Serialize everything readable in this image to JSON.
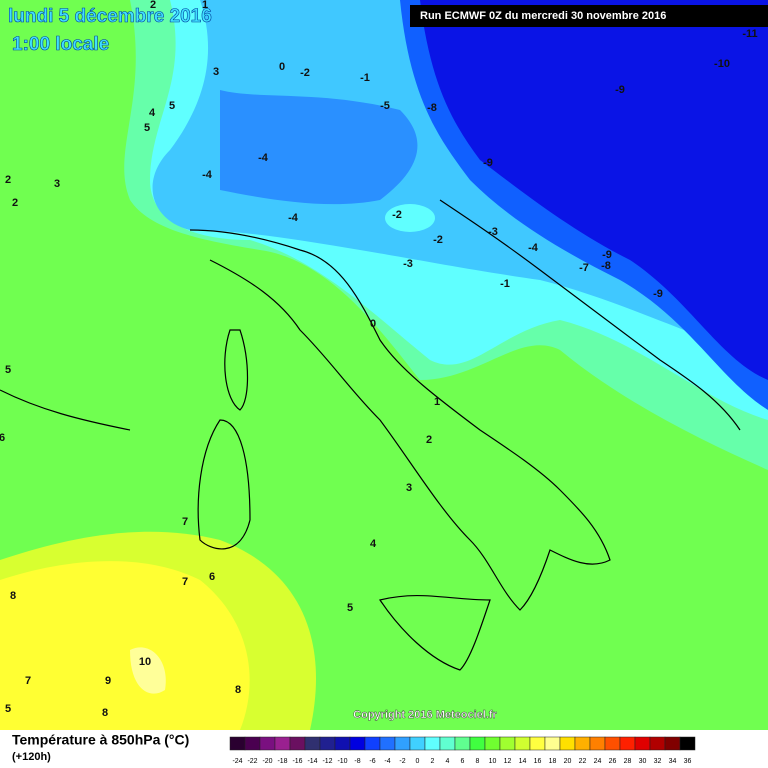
{
  "header": {
    "date": "lundi 5 décembre 2016",
    "time": "1:00 locale",
    "run": "Run ECMWF 0Z du mercredi 30 novembre 2016"
  },
  "copyright": "Copyright 2016 Meteociel.fr",
  "footer": {
    "title": "Température à 850hPa (°C)",
    "subtitle": "(+120h)"
  },
  "legend": {
    "ticks": [
      -24,
      -22,
      -20,
      -18,
      -16,
      -14,
      -12,
      -10,
      -8,
      -6,
      -4,
      -2,
      0,
      2,
      4,
      6,
      8,
      10,
      12,
      14,
      16,
      18,
      20,
      22,
      24,
      26,
      28,
      30,
      32,
      34,
      36
    ],
    "colors": [
      "#2a0030",
      "#4a0050",
      "#7a1080",
      "#9a2090",
      "#6a1060",
      "#303070",
      "#202090",
      "#1010b0",
      "#0000e0",
      "#1040ff",
      "#2070ff",
      "#30a0ff",
      "#40d0ff",
      "#60ffff",
      "#60ffd0",
      "#60ff90",
      "#40ff40",
      "#70ff30",
      "#a0ff30",
      "#d0ff30",
      "#ffff40",
      "#ffff90",
      "#ffe000",
      "#ffb000",
      "#ff8000",
      "#ff5000",
      "#ff2000",
      "#e00000",
      "#b00000",
      "#800000",
      "#000000"
    ]
  },
  "map": {
    "labels": [
      "2",
      "1",
      "3",
      "0",
      "-2",
      "-1",
      "-5",
      "-8",
      "-9",
      "-10",
      "-11",
      "5",
      "4",
      "5",
      "-4",
      "-4",
      "-9",
      "2",
      "3",
      "2",
      "-4",
      "-2",
      "-2",
      "-3",
      "-4",
      "-9",
      "-8",
      "-7",
      "-3",
      "-1",
      "-9",
      "0",
      "5",
      "6",
      "1",
      "2",
      "3",
      "7",
      "4",
      "7",
      "6",
      "8",
      "5",
      "10",
      "9",
      "7",
      "8",
      "8",
      "5"
    ]
  }
}
